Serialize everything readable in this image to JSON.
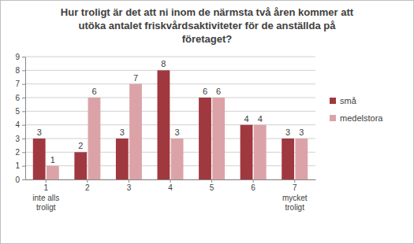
{
  "chart_data": {
    "type": "bar",
    "title": "Hur troligt är det att ni inom de närmsta två åren kommer att utöka antalet friskvårdsaktiviteter för de anställda på företaget?",
    "categories": [
      "1\ninte alls\ntroligt",
      "2",
      "3",
      "4",
      "5",
      "6",
      "7\nmycket\ntroligt"
    ],
    "series": [
      {
        "name": "små",
        "color": "#a0393f",
        "values": [
          3,
          2,
          3,
          8,
          6,
          4,
          3
        ]
      },
      {
        "name": "medelstora",
        "color": "#dba3a8",
        "values": [
          1,
          6,
          7,
          3,
          6,
          4,
          3
        ]
      }
    ],
    "ylim": [
      0,
      9
    ],
    "yticks": [
      0,
      1,
      2,
      3,
      4,
      5,
      6,
      7,
      8,
      9
    ],
    "grid": true,
    "legend": "right",
    "data_labels": true
  }
}
